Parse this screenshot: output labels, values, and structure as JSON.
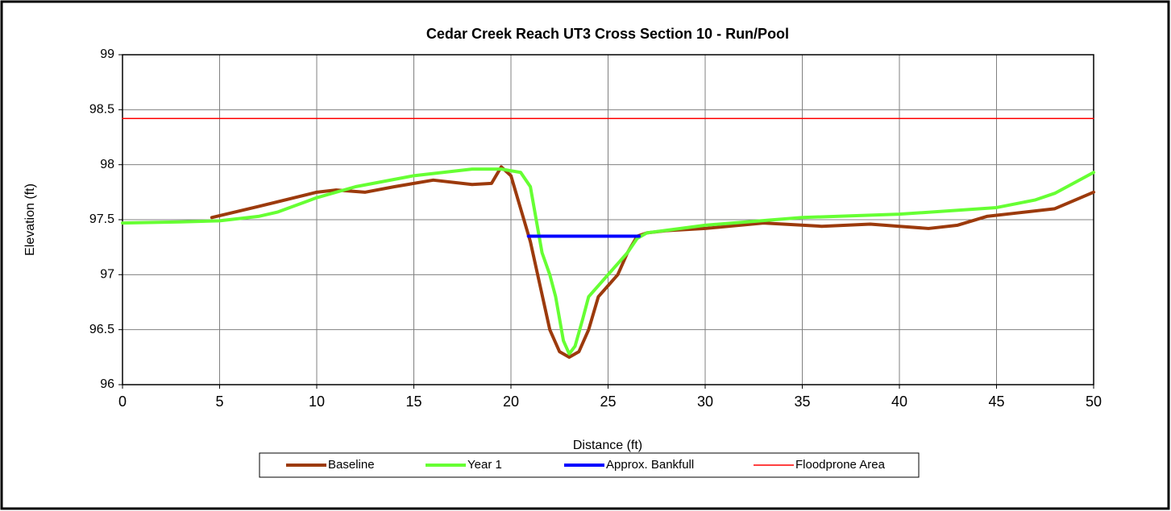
{
  "chart_data": {
    "type": "line",
    "title": "Cedar Creek Reach UT3 Cross Section 10 - Run/Pool",
    "x_label": "Distance (ft)",
    "y_label": "Elevation (ft)",
    "xlim": [
      0,
      50
    ],
    "xticks": [
      0,
      5,
      10,
      15,
      20,
      25,
      30,
      35,
      40,
      45,
      50
    ],
    "ylim": [
      96,
      99
    ],
    "yticks": [
      96,
      96.5,
      97,
      97.5,
      98,
      98.5,
      99
    ],
    "grid": true,
    "legend": "bottom",
    "series": [
      {
        "name": "Baseline",
        "color": "#9c3a0c",
        "width": 4,
        "x": [
          4.6,
          7,
          10,
          11,
          12.5,
          14,
          16,
          18,
          19,
          19.5,
          20,
          20.5,
          21,
          21.5,
          22,
          22.5,
          23,
          23.5,
          24,
          24.5,
          25,
          25.5,
          26,
          26.5,
          27,
          28,
          30,
          33,
          36,
          38.5,
          40,
          41.5,
          43,
          44.5,
          46,
          48,
          50
        ],
        "values": [
          97.52,
          97.62,
          97.75,
          97.77,
          97.75,
          97.8,
          97.86,
          97.82,
          97.83,
          97.98,
          97.9,
          97.6,
          97.3,
          96.9,
          96.5,
          96.3,
          96.25,
          96.3,
          96.5,
          96.8,
          96.9,
          97.0,
          97.2,
          97.35,
          97.38,
          97.4,
          97.42,
          97.47,
          97.44,
          97.46,
          97.44,
          97.42,
          97.45,
          97.53,
          97.56,
          97.6,
          97.75
        ]
      },
      {
        "name": "Year 1",
        "color": "#66ff33",
        "width": 4,
        "x": [
          0,
          3,
          5,
          7,
          8,
          10,
          12,
          15,
          18,
          19.5,
          20.5,
          21,
          21.3,
          21.6,
          22,
          22.3,
          22.7,
          23,
          23.3,
          23.7,
          24,
          25,
          25.5,
          26,
          26.5,
          27,
          30,
          35,
          40,
          45,
          47,
          48,
          50
        ],
        "values": [
          97.47,
          97.48,
          97.49,
          97.53,
          97.57,
          97.7,
          97.8,
          97.9,
          97.96,
          97.96,
          97.93,
          97.8,
          97.5,
          97.2,
          97.0,
          96.8,
          96.4,
          96.28,
          96.35,
          96.6,
          96.8,
          97.0,
          97.1,
          97.2,
          97.33,
          97.38,
          97.45,
          97.52,
          97.55,
          97.61,
          97.68,
          97.74,
          97.93
        ]
      },
      {
        "name": "Approx. Bankfull",
        "color": "#0000ff",
        "width": 4,
        "x": [
          20.9,
          26.6
        ],
        "values": [
          97.35,
          97.35
        ]
      },
      {
        "name": "Floodprone Area",
        "color": "#ff0000",
        "width": 1.5,
        "x": [
          0,
          50
        ],
        "values": [
          98.42,
          98.42
        ]
      }
    ]
  }
}
